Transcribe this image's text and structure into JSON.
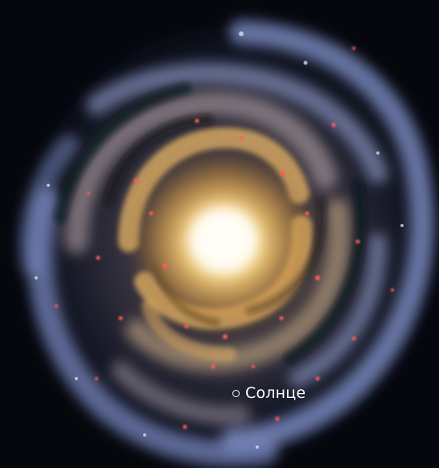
{
  "image": {
    "subject": "spiral-galaxy",
    "colors": {
      "background": "#05070d",
      "core": "#fff8e6",
      "inner_arms": "#f3bf6a",
      "outer_arms": "#8f9fd6",
      "star_forming_regions": "#ff5a5a"
    }
  },
  "marker": {
    "label": "Солнце",
    "icon": "circle-marker-icon"
  }
}
